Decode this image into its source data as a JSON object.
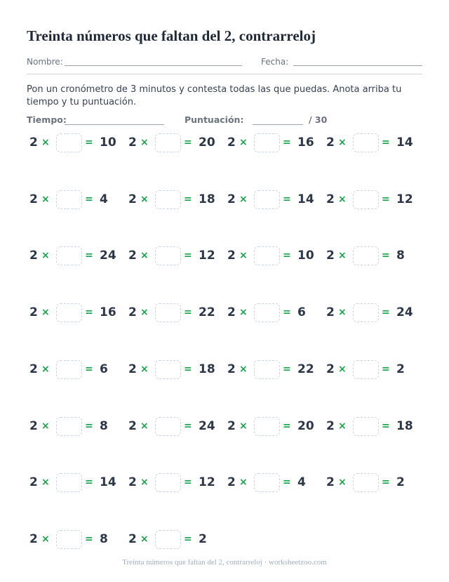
{
  "header": {
    "title": "Treinta números que faltan del 2, contrarreloj",
    "name_label": "Nombre:",
    "date_label": "Fecha:"
  },
  "instructions": "Pon un cronómetro de 3 minutos y contesta todas las que puedas. Anota arriba tu tiempo y tu puntuación.",
  "score": {
    "time_label": "Tiempo:",
    "score_label": "Puntuación:",
    "total": "/ 30"
  },
  "symbols": {
    "times": "×",
    "equals": "="
  },
  "problems": [
    {
      "factor": 2,
      "result": 10
    },
    {
      "factor": 2,
      "result": 20
    },
    {
      "factor": 2,
      "result": 16
    },
    {
      "factor": 2,
      "result": 14
    },
    {
      "factor": 2,
      "result": 4
    },
    {
      "factor": 2,
      "result": 18
    },
    {
      "factor": 2,
      "result": 14
    },
    {
      "factor": 2,
      "result": 12
    },
    {
      "factor": 2,
      "result": 24
    },
    {
      "factor": 2,
      "result": 12
    },
    {
      "factor": 2,
      "result": 10
    },
    {
      "factor": 2,
      "result": 8
    },
    {
      "factor": 2,
      "result": 16
    },
    {
      "factor": 2,
      "result": 22
    },
    {
      "factor": 2,
      "result": 6
    },
    {
      "factor": 2,
      "result": 24
    },
    {
      "factor": 2,
      "result": 6
    },
    {
      "factor": 2,
      "result": 18
    },
    {
      "factor": 2,
      "result": 22
    },
    {
      "factor": 2,
      "result": 2
    },
    {
      "factor": 2,
      "result": 8
    },
    {
      "factor": 2,
      "result": 24
    },
    {
      "factor": 2,
      "result": 20
    },
    {
      "factor": 2,
      "result": 18
    },
    {
      "factor": 2,
      "result": 14
    },
    {
      "factor": 2,
      "result": 12
    },
    {
      "factor": 2,
      "result": 4
    },
    {
      "factor": 2,
      "result": 2
    },
    {
      "factor": 2,
      "result": 8
    },
    {
      "factor": 2,
      "result": 2
    }
  ],
  "footer": "Treinta números que faltan del 2, contrarreloj · worksheetzoo.com"
}
